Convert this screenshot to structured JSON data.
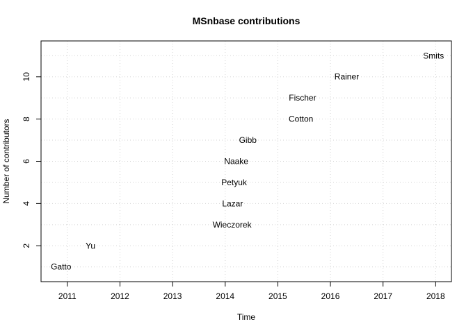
{
  "chart_data": {
    "type": "scatter",
    "title": "MSnbase contributions",
    "xlabel": "Time",
    "ylabel": "Number of contributors",
    "xlim": [
      2010.5,
      2018.3
    ],
    "ylim": [
      0.3,
      11.7
    ],
    "x_ticks": [
      2011,
      2012,
      2013,
      2014,
      2015,
      2016,
      2017,
      2018
    ],
    "y_ticks": [
      2,
      4,
      6,
      8,
      10
    ],
    "grid": true,
    "marker": "text-label",
    "points": [
      {
        "label": "Gatto",
        "x": 2010.88,
        "y": 1
      },
      {
        "label": "Yu",
        "x": 2011.44,
        "y": 2
      },
      {
        "label": "Wieczorek",
        "x": 2014.13,
        "y": 3
      },
      {
        "label": "Lazar",
        "x": 2014.14,
        "y": 4
      },
      {
        "label": "Petyuk",
        "x": 2014.17,
        "y": 5
      },
      {
        "label": "Naake",
        "x": 2014.21,
        "y": 6
      },
      {
        "label": "Gibb",
        "x": 2014.43,
        "y": 7
      },
      {
        "label": "Cotton",
        "x": 2015.44,
        "y": 8
      },
      {
        "label": "Fischer",
        "x": 2015.47,
        "y": 9
      },
      {
        "label": "Rainer",
        "x": 2016.31,
        "y": 10
      },
      {
        "label": "Smits",
        "x": 2017.96,
        "y": 11
      }
    ]
  }
}
